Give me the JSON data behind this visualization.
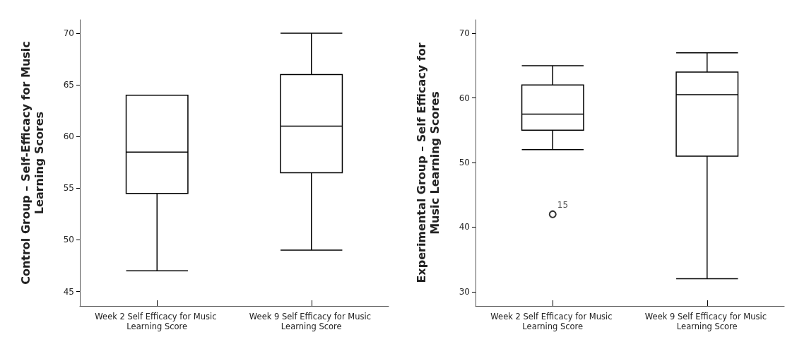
{
  "chart_data": [
    {
      "type": "box",
      "ylabel": "Control Group – Self-Efficacy for Music Learning Scores",
      "categories": [
        "Week 2 Self Efficacy for Music Learning Score",
        "Week 9 Self Efficacy for Music Learning Score"
      ],
      "boxes": [
        {
          "low": 47,
          "q1": 54.5,
          "median": 58.5,
          "q3": 64,
          "high": 64
        },
        {
          "low": 49,
          "q1": 56.5,
          "median": 61,
          "q3": 66,
          "high": 70
        }
      ],
      "ylim": [
        43.6,
        71.3
      ],
      "yticks": [
        45,
        50,
        55,
        60,
        65,
        70
      ],
      "grid": false
    },
    {
      "type": "box",
      "ylabel": "Experimental Group – Self Efficacy for Music Learning Scores",
      "categories": [
        "Week 2 Self Efficacy for Music Learning Score",
        "Week 9 Self Efficacy for Music Learning Score"
      ],
      "boxes": [
        {
          "low": 52,
          "q1": 55,
          "median": 57.5,
          "q3": 62,
          "high": 65,
          "outliers": [
            42
          ]
        },
        {
          "low": 32,
          "q1": 51,
          "median": 60.5,
          "q3": 64,
          "high": 67
        }
      ],
      "ylim": [
        27.8,
        72.1
      ],
      "yticks": [
        30,
        40,
        50,
        60,
        70
      ],
      "grid": false,
      "annotations": [
        "15"
      ]
    }
  ]
}
